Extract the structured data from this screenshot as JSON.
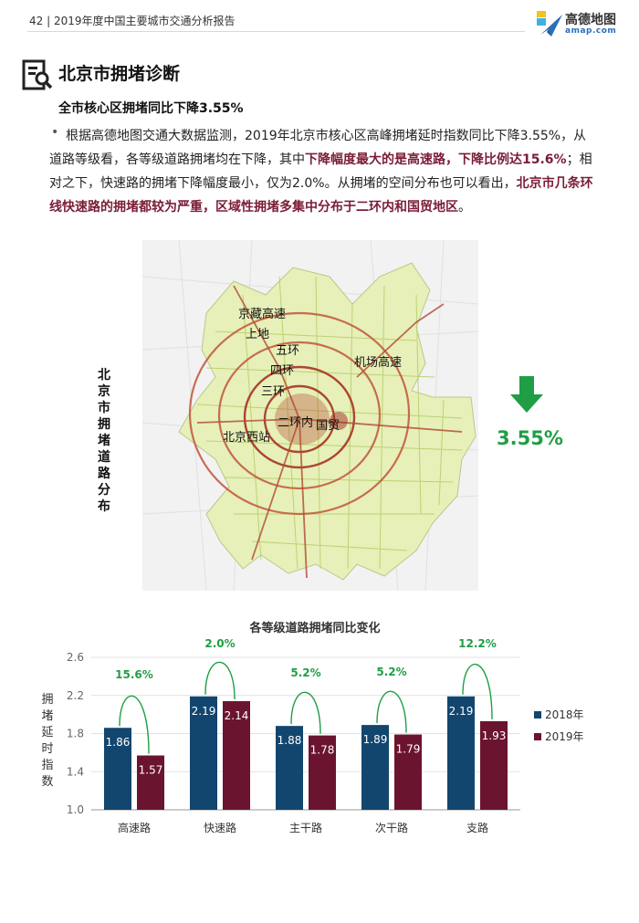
{
  "header": {
    "text": "42 | 2019年度中国主要城市交通分析报告",
    "logo_cn": "高德地图",
    "logo_en": "amap.com"
  },
  "section": {
    "title": "北京市拥堵诊断",
    "subtitle": "全市核心区拥堵同比下降3.55%"
  },
  "paragraph": {
    "part1": "根据高德地图交通大数据监测，2019年北京市核心区高峰拥堵延时指数同比下降3.55%，从道路等级看，各等级道路拥堵均在下降，其中",
    "hl1": "下降幅度最大的是高速路，下降比例达15.6%",
    "part2": "；相对之下，快速路的拥堵下降幅度最小，仅为2.0%。从拥堵的空间分布也可以看出，",
    "hl2": "北京市几条环线快速路的拥堵都较为严重，区域性拥堵多集中分布于二环内和国贸地区",
    "part3": "。"
  },
  "map": {
    "side_label": "北京市拥堵道路分布",
    "labels": [
      "京藏高速",
      "上地",
      "五环",
      "四环",
      "机场高速",
      "三环",
      "二环内",
      "国贸",
      "北京西站"
    ],
    "decline_value": "3.55%",
    "decline_color": "#1f9e45"
  },
  "chart_data": {
    "type": "bar",
    "title": "各等级道路拥堵同比变化",
    "ylabel": "拥堵延时指数",
    "ylim": [
      1.0,
      2.6
    ],
    "yticks": [
      1.0,
      1.4,
      1.8,
      2.2,
      2.6
    ],
    "categories": [
      "高速路",
      "快速路",
      "主干路",
      "次干路",
      "支路"
    ],
    "series": [
      {
        "name": "2018年",
        "color": "#12466e",
        "values": [
          1.86,
          2.19,
          1.88,
          1.89,
          2.19
        ],
        "labels": [
          "1.86",
          "2.19",
          "1.88",
          "1.89",
          "2.19"
        ]
      },
      {
        "name": "2019年",
        "color": "#6b1430",
        "values": [
          1.57,
          2.14,
          1.78,
          1.79,
          1.93
        ],
        "labels": [
          "1.57",
          "2.14",
          "1.78",
          "1.79",
          "1.93"
        ]
      }
    ],
    "annotations": [
      "15.6%",
      "2.0%",
      "5.2%",
      "5.2%",
      "12.2%"
    ],
    "annotation_color": "#1f9e45",
    "legend_position": "right"
  }
}
